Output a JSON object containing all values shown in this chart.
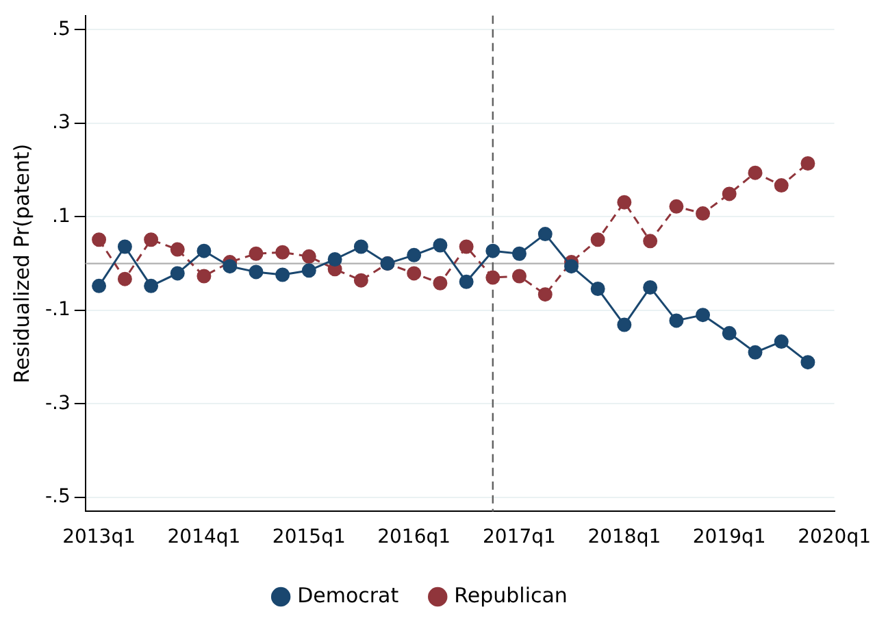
{
  "chart_data": {
    "type": "line",
    "ylabel": "Residualized Pr(patent)",
    "x": [
      "2013-01",
      "2013-04",
      "2013-07",
      "2013-10",
      "2014-01",
      "2014-04",
      "2014-07",
      "2014-10",
      "2015-01",
      "2015-04",
      "2015-07",
      "2015-10",
      "2016-01",
      "2016-04",
      "2016-07",
      "2016-10",
      "2017-01",
      "2017-04",
      "2017-07",
      "2017-10",
      "2018-01",
      "2018-04",
      "2018-07",
      "2018-10",
      "2019-01",
      "2019-04",
      "2019-07",
      "2019-10"
    ],
    "series": [
      {
        "name": "Democrat",
        "color": "#1a476f",
        "line_style": "solid",
        "values": [
          -0.048,
          0.036,
          -0.048,
          -0.021,
          0.027,
          -0.006,
          -0.018,
          -0.024,
          -0.015,
          0.009,
          0.036,
          0,
          0.018,
          0.039,
          -0.039,
          0.027,
          0.021,
          0.063,
          -0.006,
          -0.054,
          -0.131,
          -0.051,
          -0.122,
          -0.11,
          -0.149,
          -0.19,
          -0.167,
          -0.211
        ]
      },
      {
        "name": "Republican",
        "color": "#90353b",
        "line_style": "dashed",
        "values": [
          0.051,
          -0.033,
          0.051,
          0.03,
          -0.027,
          0.003,
          0.021,
          0.024,
          0.015,
          -0.012,
          -0.036,
          0,
          -0.021,
          -0.042,
          0.036,
          -0.03,
          -0.027,
          -0.066,
          0.003,
          0.051,
          0.131,
          0.048,
          0.122,
          0.107,
          0.149,
          0.194,
          0.167,
          0.214
        ]
      }
    ],
    "xlim": [
      "2012-11-15",
      "2020-01-01"
    ],
    "xticks": [
      {
        "value": "2013-01",
        "label": "2013q1"
      },
      {
        "value": "2014-01",
        "label": "2014q1"
      },
      {
        "value": "2015-01",
        "label": "2015q1"
      },
      {
        "value": "2016-01",
        "label": "2016q1"
      },
      {
        "value": "2017-01",
        "label": "2017q1"
      },
      {
        "value": "2018-01",
        "label": "2018q1"
      },
      {
        "value": "2019-01",
        "label": "2019q1"
      },
      {
        "value": "2020-01",
        "label": "2020q1"
      }
    ],
    "ylim": [
      -0.53,
      0.53
    ],
    "yticks": [
      {
        "value": -0.5,
        "label": "-.5"
      },
      {
        "value": -0.3,
        "label": "-.3"
      },
      {
        "value": -0.1,
        "label": "-.1"
      },
      {
        "value": 0.1,
        "label": ".1"
      },
      {
        "value": 0.3,
        "label": ".3"
      },
      {
        "value": 0.5,
        "label": ".5"
      }
    ],
    "ref_lines": [
      {
        "axis": "y",
        "value": 0,
        "color": "#b0b0b0",
        "line_style": "solid"
      },
      {
        "axis": "x",
        "value": "2016-10",
        "color": "#606060",
        "line_style": "dashed"
      }
    ],
    "grid": "y",
    "legend": "bottom",
    "marker": "circle"
  }
}
